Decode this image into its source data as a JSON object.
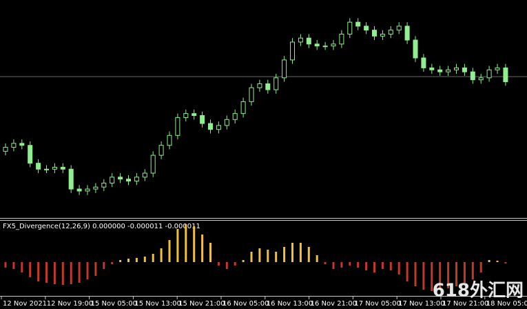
{
  "chart_data": [
    {
      "type": "candlestick",
      "open": [
        28,
        30,
        32,
        31,
        22,
        19,
        19,
        20,
        19,
        9,
        8,
        9,
        10,
        12,
        15,
        14,
        13,
        15,
        17,
        26,
        31,
        36,
        45,
        47,
        46,
        42,
        39,
        41,
        44,
        47,
        53,
        60,
        62,
        59,
        65,
        74,
        83,
        85,
        82,
        81,
        81,
        82,
        87,
        93,
        91,
        89,
        86,
        87,
        89,
        91,
        84,
        75,
        70,
        69,
        68,
        69,
        70,
        68,
        64,
        65,
        69,
        70
      ],
      "high": [
        32,
        34,
        34,
        33,
        24,
        21,
        22,
        22,
        21,
        11,
        11,
        12,
        14,
        17,
        17,
        16,
        17,
        19,
        28,
        33,
        38,
        47,
        49,
        49,
        48,
        44,
        43,
        46,
        49,
        55,
        62,
        64,
        64,
        67,
        76,
        85,
        87,
        87,
        84,
        83,
        84,
        89,
        95,
        95,
        93,
        91,
        89,
        91,
        93,
        93,
        86,
        77,
        72,
        71,
        71,
        72,
        72,
        70,
        67,
        71,
        72,
        72
      ],
      "low": [
        26,
        28,
        29,
        20,
        17,
        17,
        17,
        17,
        7,
        6,
        6,
        7,
        8,
        10,
        12,
        11,
        11,
        13,
        15,
        24,
        29,
        34,
        43,
        44,
        40,
        37,
        37,
        39,
        42,
        45,
        51,
        58,
        57,
        57,
        63,
        72,
        81,
        80,
        79,
        79,
        79,
        80,
        85,
        89,
        87,
        84,
        84,
        85,
        87,
        82,
        73,
        68,
        67,
        66,
        66,
        67,
        66,
        62,
        62,
        63,
        67,
        61
      ],
      "close": [
        30,
        32,
        31,
        22,
        19,
        19,
        20,
        19,
        9,
        8,
        9,
        10,
        12,
        15,
        14,
        13,
        15,
        17,
        26,
        31,
        36,
        45,
        47,
        46,
        42,
        39,
        41,
        44,
        47,
        53,
        60,
        62,
        59,
        65,
        74,
        83,
        85,
        82,
        81,
        81,
        82,
        87,
        93,
        91,
        89,
        86,
        87,
        89,
        91,
        84,
        75,
        70,
        69,
        68,
        69,
        70,
        68,
        64,
        65,
        69,
        70,
        63
      ],
      "ylim": [
        0,
        100
      ],
      "hline": 65.6,
      "color": "#90ee90"
    },
    {
      "type": "histogram",
      "title": "FX5_Divergence(12,26,9) 0.000000 -0.000011 -0.000011",
      "values": [
        -8e-06,
        -1e-05,
        -1.5e-05,
        -2.2e-05,
        -2.8e-05,
        -3e-05,
        -3.2e-05,
        -3.3e-05,
        -3.2e-05,
        -3e-05,
        -2.5e-05,
        -2e-05,
        -1e-05,
        -3e-06,
        3e-06,
        5e-06,
        6e-06,
        8e-06,
        1.2e-05,
        2e-05,
        3.2e-05,
        4.8e-05,
        5.5e-05,
        5.2e-05,
        4e-05,
        2.8e-05,
        -5e-06,
        -1e-05,
        -5e-06,
        3e-06,
        1.5e-05,
        2e-05,
        1.8e-05,
        1.5e-05,
        2.2e-05,
        2.8e-05,
        2.8e-05,
        2.2e-05,
        1e-05,
        -3e-06,
        -1e-05,
        -8e-06,
        -5e-06,
        -8e-06,
        -1.2e-05,
        -1.5e-05,
        -1e-05,
        -1.2e-05,
        -1.8e-05,
        -2.8e-05,
        -3.5e-05,
        -4e-05,
        -4.2e-05,
        -4e-05,
        -3.8e-05,
        -3.5e-05,
        -3e-05,
        -2.5e-05,
        -1.5e-05,
        3e-06,
        2e-06,
        -2e-06
      ],
      "ylim": [
        -4.7e-05,
        6e-05
      ],
      "up_color": "#f0c040",
      "down_color": "#c0392b"
    }
  ],
  "time_axis": [
    "12 Nov 2021",
    "12 Nov 19:00",
    "15 Nov 05:00",
    "15 Nov 13:00",
    "15 Nov 21:00",
    "16 Nov 05:00",
    "16 Nov 13:00",
    "16 Nov 21:00",
    "17 Nov 05:00",
    "17 Nov 13:00",
    "17 Nov 21:00",
    "18 Nov 05:00"
  ],
  "watermark": "618外汇网"
}
